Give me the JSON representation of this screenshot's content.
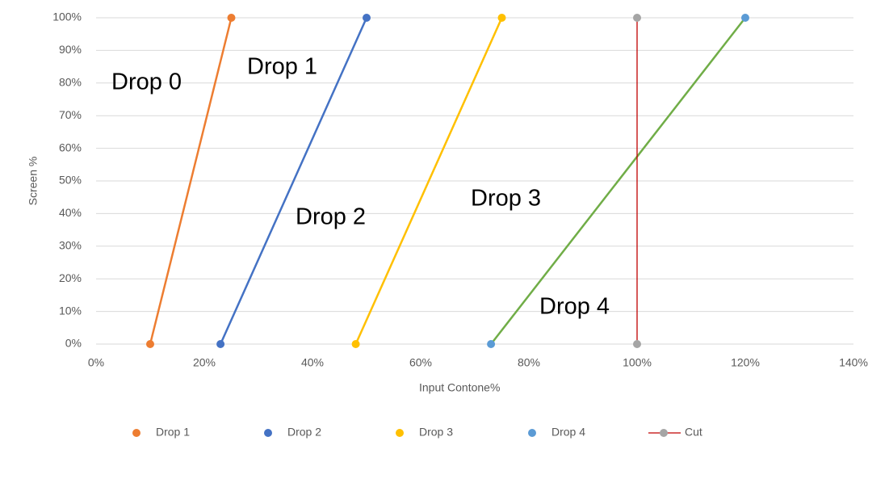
{
  "chart_data": {
    "type": "line",
    "x_label": "Input Contone%",
    "y_label": "Screen %",
    "xlim": [
      0,
      140
    ],
    "ylim": [
      0,
      100
    ],
    "xticks": [
      {
        "value": 0,
        "label": "0%"
      },
      {
        "value": 20,
        "label": "20%"
      },
      {
        "value": 40,
        "label": "40%"
      },
      {
        "value": 60,
        "label": "60%"
      },
      {
        "value": 80,
        "label": "80%"
      },
      {
        "value": 100,
        "label": "100%"
      },
      {
        "value": 120,
        "label": "120%"
      },
      {
        "value": 140,
        "label": "140%"
      }
    ],
    "yticks": [
      {
        "value": 0,
        "label": "0%"
      },
      {
        "value": 10,
        "label": "10%"
      },
      {
        "value": 20,
        "label": "20%"
      },
      {
        "value": 30,
        "label": "30%"
      },
      {
        "value": 40,
        "label": "40%"
      },
      {
        "value": 50,
        "label": "50%"
      },
      {
        "value": 60,
        "label": "60%"
      },
      {
        "value": 70,
        "label": "70%"
      },
      {
        "value": 80,
        "label": "80%"
      },
      {
        "value": 90,
        "label": "90%"
      },
      {
        "value": 100,
        "label": "100%"
      }
    ],
    "grid": true,
    "legend": "bottom",
    "series": [
      {
        "name": "Drop 1",
        "color": "#ED7D31",
        "line_color": "#ED7D31",
        "x": [
          10,
          25
        ],
        "values": [
          0,
          100
        ]
      },
      {
        "name": "Drop 2",
        "color": "#4472C4",
        "line_color": "#4472C4",
        "x": [
          23,
          50
        ],
        "values": [
          0,
          100
        ]
      },
      {
        "name": "Drop 3",
        "color": "#FFC000",
        "line_color": "#FFC000",
        "x": [
          48,
          75
        ],
        "values": [
          0,
          100
        ]
      },
      {
        "name": "Drop 4",
        "color": "#5B9BD5",
        "line_color": "#70AD47",
        "x": [
          73,
          120
        ],
        "values": [
          0,
          100
        ]
      },
      {
        "name": "Cut",
        "color": "#A5A5A5",
        "line_color": "#C00000",
        "x": [
          100,
          100
        ],
        "values": [
          0,
          100
        ],
        "legend_line": true
      }
    ],
    "annotations": [
      "Drop  0",
      "Drop  1",
      "Drop  2",
      "Drop  3",
      "Drop  4"
    ]
  }
}
